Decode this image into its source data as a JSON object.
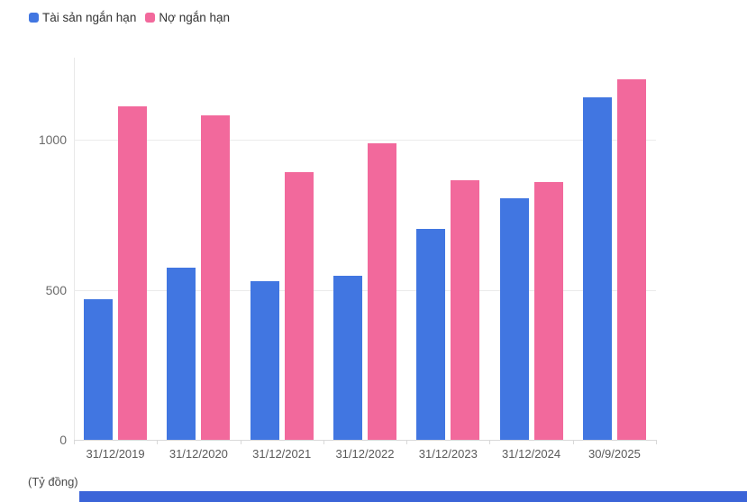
{
  "chart_data": {
    "type": "bar",
    "title": "",
    "unit_label": "(Tỷ đồng)",
    "categories": [
      "31/12/2019",
      "31/12/2020",
      "31/12/2021",
      "31/12/2022",
      "31/12/2023",
      "31/12/2024",
      "30/9/2025"
    ],
    "series": [
      {
        "name": "Tài sản ngắn hạn",
        "color": "#4176E1",
        "values": [
          468,
          573,
          529,
          547,
          705,
          805,
          1144
        ]
      },
      {
        "name": "Nợ ngắn hạn",
        "color": "#F2699C",
        "values": [
          1112,
          1083,
          893,
          990,
          865,
          860,
          1202
        ]
      }
    ],
    "y_ticks": [
      0,
      500,
      1000
    ],
    "ylim": [
      0,
      1275
    ],
    "grid": true,
    "legend_position": "top-left"
  },
  "colors": {
    "series_blue": "#4176E1",
    "series_pink": "#F2699C",
    "gridline": "#ebebeb",
    "axis_line": "#d9d9d9",
    "bottom_strip": "#3B64D8"
  }
}
